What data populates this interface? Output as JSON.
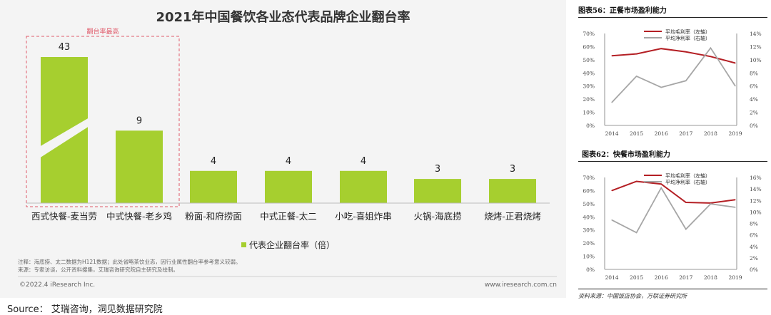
{
  "main": {
    "title": "2021年中国餐饮各业态代表品牌企业翻台率",
    "highlight_label": "翻台率最高",
    "notes": [
      "注释：海底捞、太二数据为H121数据；此处省略茶饮业态，因行业属性翻台率参考意义较弱。",
      "来源：专家访谈，公开资料搜集，艾瑞咨询研究院自主研究及绘制。"
    ],
    "copyright": "©2022.4 iResearch Inc.",
    "website": "www.iresearch.com.cn"
  },
  "source_line": "Source： 艾瑞咨询，洞见数据研究院",
  "right": {
    "fig56_title": "图表56：正餐市场盈利能力",
    "fig62_title": "图表62：快餐市场盈利能力",
    "source": "资料来源：中国饭店协会，万联证券研究所"
  },
  "chart_data": [
    {
      "type": "bar",
      "title": "2021年中国餐饮各业态代表品牌企业翻台率",
      "categories": [
        "西式快餐-麦当劳",
        "中式快餐-老乡鸡",
        "粉面-和府捞面",
        "中式正餐-太二",
        "小吃-喜姐炸串",
        "火锅-海底捞",
        "烧烤-正君烧烤"
      ],
      "values": [
        43,
        9,
        4,
        4,
        4,
        3,
        3
      ],
      "series": [
        {
          "name": "代表企业翻台率（倍）",
          "values": [
            43,
            9,
            4,
            4,
            4,
            3,
            3
          ]
        }
      ],
      "axis_break": true,
      "color": "#a6cf2f"
    },
    {
      "type": "line",
      "title": "图表56：正餐市场盈利能力",
      "x": [
        "2014",
        "2015",
        "2016",
        "2017",
        "2018",
        "2019"
      ],
      "series": [
        {
          "name": "平均毛利率（左轴）",
          "axis": "left",
          "values": [
            53,
            54.5,
            58.5,
            56,
            52.5,
            47.5
          ],
          "color": "#b41f24"
        },
        {
          "name": "平均净利率（右轴）",
          "axis": "right",
          "values": [
            3.5,
            7.5,
            5.8,
            6.8,
            11.8,
            6.0
          ],
          "color": "#a6a6a6"
        }
      ],
      "ylim_left": [
        0,
        70
      ],
      "yticks_left": [
        "0%",
        "10%",
        "20%",
        "30%",
        "40%",
        "50%",
        "60%",
        "70%"
      ],
      "ylim_right": [
        0,
        14
      ],
      "yticks_right": [
        "0%",
        "2%",
        "4%",
        "6%",
        "8%",
        "10%",
        "12%",
        "14%"
      ],
      "legend": "top-center"
    },
    {
      "type": "line",
      "title": "图表62：快餐市场盈利能力",
      "x": [
        "2014",
        "2015",
        "2016",
        "2017",
        "2018",
        "2019"
      ],
      "series": [
        {
          "name": "平均毛利率（左轴）",
          "axis": "left",
          "values": [
            60,
            67,
            65,
            51,
            50.5,
            53
          ],
          "color": "#b41f24"
        },
        {
          "name": "平均净利率（右轴）",
          "axis": "right",
          "values": [
            8.6,
            6.4,
            14.2,
            7.0,
            11.4,
            10.8
          ],
          "color": "#a6a6a6"
        }
      ],
      "ylim_left": [
        0,
        70
      ],
      "yticks_left": [
        "0%",
        "10%",
        "20%",
        "30%",
        "40%",
        "50%",
        "60%",
        "70%"
      ],
      "ylim_right": [
        0,
        16
      ],
      "yticks_right": [
        "0%",
        "2%",
        "4%",
        "6%",
        "8%",
        "10%",
        "12%",
        "14%",
        "16%"
      ],
      "legend": "top-center"
    }
  ]
}
